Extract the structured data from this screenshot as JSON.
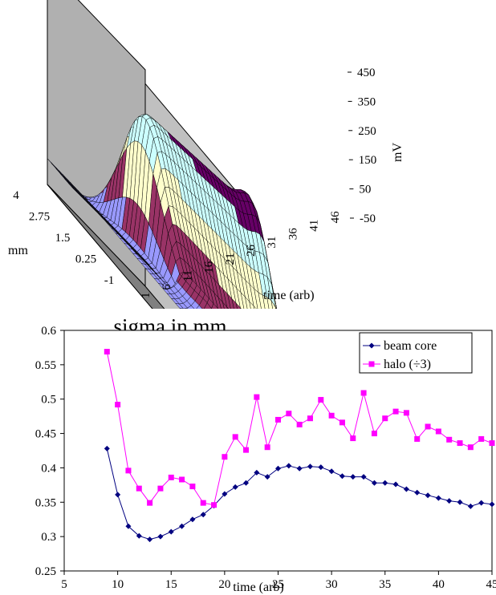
{
  "chart_data": [
    {
      "type": "surface",
      "zlabel": "mV",
      "xlabel": "time (arb)",
      "ylabel": "mm",
      "z_ticks": [
        "450",
        "350",
        "250",
        "150",
        "50",
        "-50"
      ],
      "time_ticks": [
        "1",
        "6",
        "11",
        "16",
        "21",
        "26",
        "31",
        "36",
        "41",
        "46"
      ],
      "mm_ticks": [
        "4",
        "2.75",
        "1.5",
        "0.25",
        "-1"
      ],
      "band_colors": [
        "#9999ff",
        "#993366",
        "#ffffcc",
        "#ccffff",
        "#660066"
      ]
    },
    {
      "type": "line",
      "title": "sigma in mm",
      "xlabel": "time (arb)",
      "ylabel": "",
      "xlim": [
        5,
        45
      ],
      "ylim": [
        0.25,
        0.6
      ],
      "x_ticks": [
        "5",
        "10",
        "15",
        "20",
        "25",
        "30",
        "35",
        "40",
        "45"
      ],
      "y_ticks": [
        "0.6",
        "0.55",
        "0.5",
        "0.45",
        "0.4",
        "0.35",
        "0.3",
        "0.25"
      ],
      "legend_position": "top-right",
      "x": [
        9,
        10,
        11,
        12,
        13,
        14,
        15,
        16,
        17,
        18,
        19,
        20,
        21,
        22,
        23,
        24,
        25,
        26,
        27,
        28,
        29,
        30,
        31,
        32,
        33,
        34,
        35,
        36,
        37,
        38,
        39,
        40,
        41,
        42,
        43,
        44,
        45
      ],
      "series": [
        {
          "name": "beam core",
          "color": "#000080",
          "marker": "diamond",
          "values": [
            0.428,
            0.361,
            0.315,
            0.301,
            0.296,
            0.3,
            0.307,
            0.315,
            0.325,
            0.332,
            0.345,
            0.362,
            0.372,
            0.378,
            0.393,
            0.387,
            0.399,
            0.403,
            0.399,
            0.402,
            0.401,
            0.395,
            0.388,
            0.387,
            0.387,
            0.378,
            0.378,
            0.376,
            0.369,
            0.364,
            0.36,
            0.356,
            0.352,
            0.35,
            0.344,
            0.349,
            0.347
          ]
        },
        {
          "name": "halo (÷3)",
          "color": "#ff00ff",
          "marker": "square",
          "values": [
            0.569,
            0.492,
            0.396,
            0.37,
            0.349,
            0.37,
            0.386,
            0.383,
            0.373,
            0.349,
            0.346,
            0.416,
            0.445,
            0.426,
            0.503,
            0.43,
            0.47,
            0.479,
            0.463,
            0.472,
            0.499,
            0.476,
            0.466,
            0.443,
            0.509,
            0.45,
            0.472,
            0.482,
            0.48,
            0.442,
            0.46,
            0.453,
            0.441,
            0.436,
            0.43,
            0.442,
            0.436
          ]
        }
      ]
    }
  ]
}
